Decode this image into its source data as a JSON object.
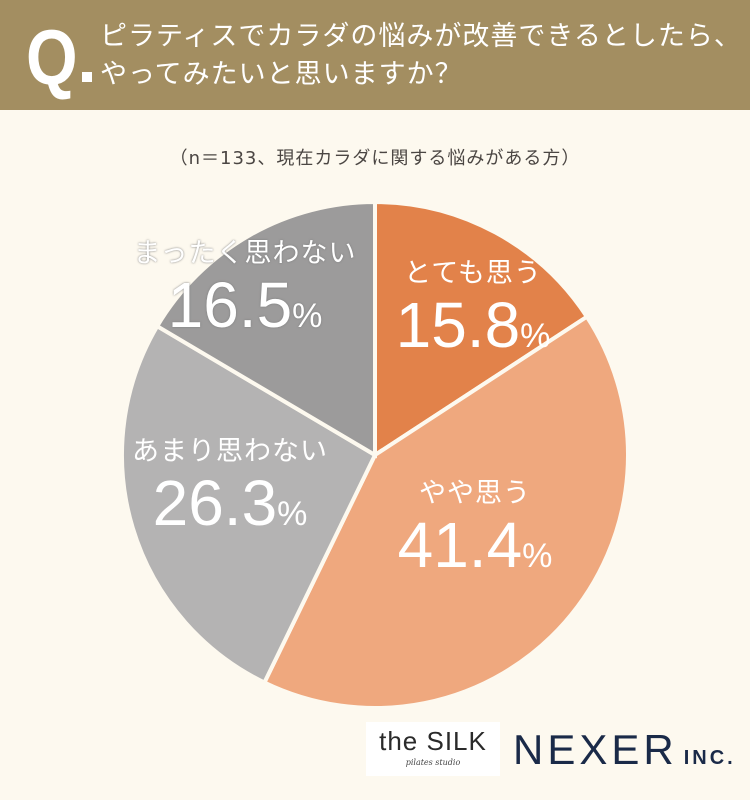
{
  "header": {
    "q_mark": "Q",
    "question_line1": "ピラティスでカラダの悩みが改善できるとしたら、",
    "question_line2": "やってみたいと思いますか？",
    "bg_color": "#a38e61"
  },
  "subtitle": "（n＝133、現在カラダに関する悩みがある方）",
  "slices": [
    {
      "label": "とても思う",
      "value": "15.8",
      "color": "#e2824a"
    },
    {
      "label": "やや思う",
      "value": "41.4",
      "color": "#efa87e"
    },
    {
      "label": "あまり思わない",
      "value": "26.3",
      "color": "#b4b3b3"
    },
    {
      "label": "まったく思わない",
      "value": "16.5",
      "color": "#9c9b9b"
    }
  ],
  "percent_sign": "%",
  "logos": {
    "silk_main": "the SILK",
    "silk_sub": "pilates studio",
    "nexer_main": "NEXER",
    "nexer_inc": "INC."
  },
  "chart_data": {
    "type": "pie",
    "title": "ピラティスでカラダの悩みが改善できるとしたら、やってみたいと思いますか？",
    "subtitle": "（n＝133、現在カラダに関する悩みがある方）",
    "categories": [
      "とても思う",
      "やや思う",
      "あまり思わない",
      "まったく思わない"
    ],
    "values": [
      15.8,
      41.4,
      26.3,
      16.5
    ],
    "colors": [
      "#e2824a",
      "#efa87e",
      "#b4b3b3",
      "#9c9b9b"
    ],
    "unit": "%",
    "start_angle": "12 o'clock, clockwise",
    "legend": "labels inside slices"
  }
}
